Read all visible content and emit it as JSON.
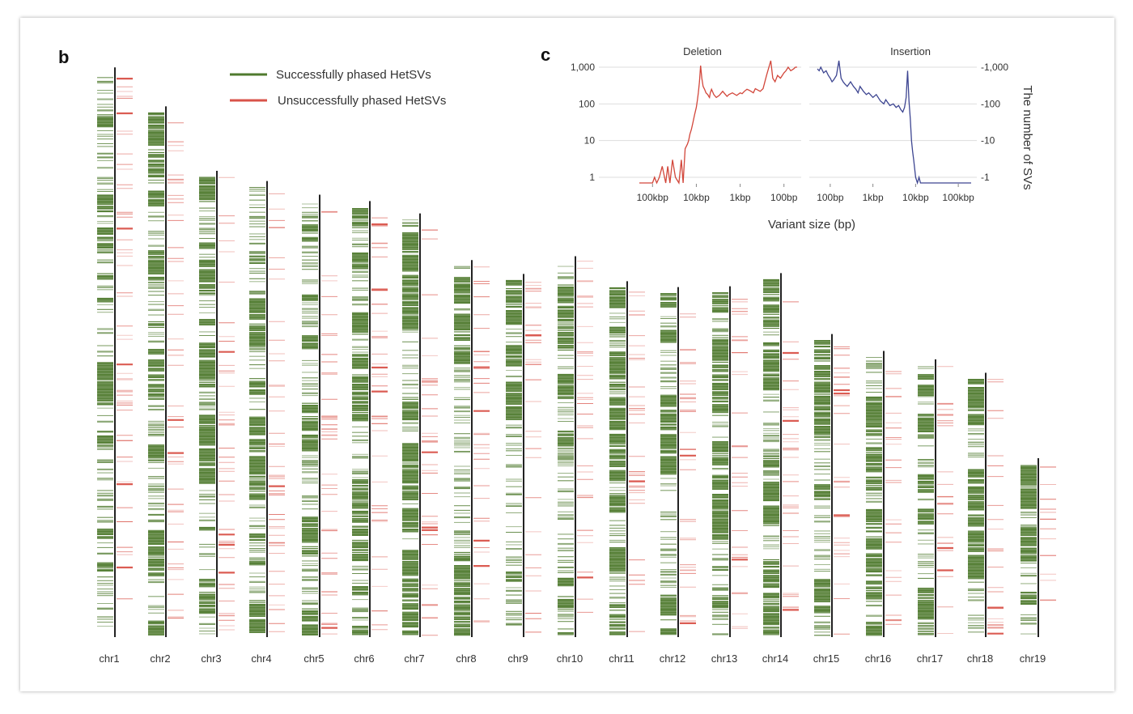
{
  "panels": {
    "b_label": "b",
    "c_label": "c"
  },
  "colors": {
    "phased": "#4f7a2e",
    "unphased": "#d9534a",
    "deletion": "#d2463a",
    "insertion": "#3d4591",
    "axis": "#222222",
    "grid": "#dddddd"
  },
  "chart_data": [
    {
      "type": "heatmap",
      "panel": "b",
      "legend_placement": "top",
      "legend": {
        "phased": "Successfully phased HetSVs",
        "unphased": "Unsuccessfully phased HetSVs"
      },
      "chromosomes": [
        {
          "name": "chr1",
          "length": 195.5
        },
        {
          "name": "chr2",
          "length": 182.1
        },
        {
          "name": "chr3",
          "length": 160.0
        },
        {
          "name": "chr4",
          "length": 156.5
        },
        {
          "name": "chr5",
          "length": 151.8
        },
        {
          "name": "chr6",
          "length": 149.6
        },
        {
          "name": "chr7",
          "length": 145.4
        },
        {
          "name": "chr8",
          "length": 129.4
        },
        {
          "name": "chr9",
          "length": 124.6
        },
        {
          "name": "chr10",
          "length": 130.7
        },
        {
          "name": "chr11",
          "length": 122.1
        },
        {
          "name": "chr12",
          "length": 120.1
        },
        {
          "name": "chr13",
          "length": 120.4
        },
        {
          "name": "chr14",
          "length": 124.9
        },
        {
          "name": "chr15",
          "length": 104.0
        },
        {
          "name": "chr16",
          "length": 98.2
        },
        {
          "name": "chr17",
          "length": 95.3
        },
        {
          "name": "chr18",
          "length": 90.7
        },
        {
          "name": "chr19",
          "length": 61.4
        }
      ]
    },
    {
      "type": "line",
      "panel": "c",
      "ylabel": "The number of SVs",
      "xlabel": "Variant size (bp)",
      "yscale": "log",
      "ylim": [
        0.5,
        2000
      ],
      "yticks": [
        "1,000",
        "100",
        "10",
        "1"
      ],
      "ytick_values": [
        1000,
        100,
        10,
        1
      ],
      "grid": true,
      "subplots": [
        {
          "title": "Deletion",
          "xticks": [
            "100kbp",
            "10kbp",
            "1kbp",
            "100bp"
          ],
          "x_reversed": true,
          "series": [
            {
              "color_key": "deletion",
              "x": [
                200000,
                150000,
                120000,
                100000,
                90000,
                80000,
                70000,
                60000,
                50000,
                45000,
                40000,
                35000,
                30000,
                25000,
                22000,
                20000,
                18000,
                16000,
                15000,
                14000,
                13000,
                12000,
                11000,
                10000,
                9500,
                9000,
                8500,
                8000,
                7500,
                7000,
                6500,
                6000,
                5500,
                5200,
                5000,
                4800,
                4500,
                4000,
                3500,
                3000,
                2500,
                2000,
                1800,
                1500,
                1200,
                1000,
                900,
                800,
                700,
                600,
                500,
                450,
                400,
                350,
                300,
                250,
                200,
                180,
                160,
                140,
                120,
                100,
                90,
                80,
                70,
                60,
                55,
                50
              ],
              "y": [
                0.7,
                0.7,
                0.7,
                0.7,
                1,
                0.7,
                1,
                2,
                0.7,
                2,
                0.7,
                3,
                1,
                0.7,
                3,
                0.7,
                6,
                8,
                10,
                15,
                20,
                30,
                50,
                80,
                120,
                200,
                400,
                1100,
                500,
                300,
                250,
                200,
                180,
                160,
                150,
                200,
                250,
                180,
                150,
                170,
                220,
                160,
                180,
                200,
                170,
                200,
                190,
                220,
                250,
                230,
                200,
                260,
                240,
                220,
                260,
                600,
                1500,
                500,
                400,
                600,
                500,
                700,
                800,
                1000,
                800,
                900,
                1000,
                1000
              ]
            }
          ]
        },
        {
          "title": "Insertion",
          "xticks": [
            "100bp",
            "1kbp",
            "10kbp",
            "100kbp"
          ],
          "x_reversed": false,
          "series": [
            {
              "color_key": "insertion",
              "x": [
                50,
                55,
                60,
                70,
                80,
                90,
                100,
                110,
                120,
                140,
                160,
                180,
                200,
                220,
                250,
                300,
                350,
                400,
                450,
                500,
                600,
                700,
                800,
                1000,
                1200,
                1500,
                1800,
                2000,
                2500,
                3000,
                3500,
                4000,
                4500,
                5000,
                5500,
                6000,
                6500,
                7000,
                7500,
                8000,
                8500,
                9000,
                10000,
                11000,
                12000,
                13000,
                14000,
                15000,
                18000,
                20000,
                25000,
                30000,
                40000,
                50000,
                60000,
                80000,
                100000,
                150000,
                200000
              ],
              "y": [
                900,
                800,
                1000,
                700,
                800,
                600,
                500,
                400,
                450,
                600,
                1500,
                500,
                400,
                350,
                300,
                400,
                300,
                250,
                200,
                300,
                220,
                180,
                200,
                150,
                180,
                120,
                100,
                130,
                90,
                100,
                80,
                90,
                70,
                60,
                80,
                150,
                800,
                120,
                40,
                10,
                5,
                3,
                1,
                0.7,
                1,
                0.7,
                0.7,
                0.7,
                0.7,
                0.7,
                0.7,
                0.7,
                0.7,
                0.7,
                0.7,
                0.7,
                0.7,
                0.7,
                0.7
              ]
            }
          ]
        }
      ]
    }
  ]
}
